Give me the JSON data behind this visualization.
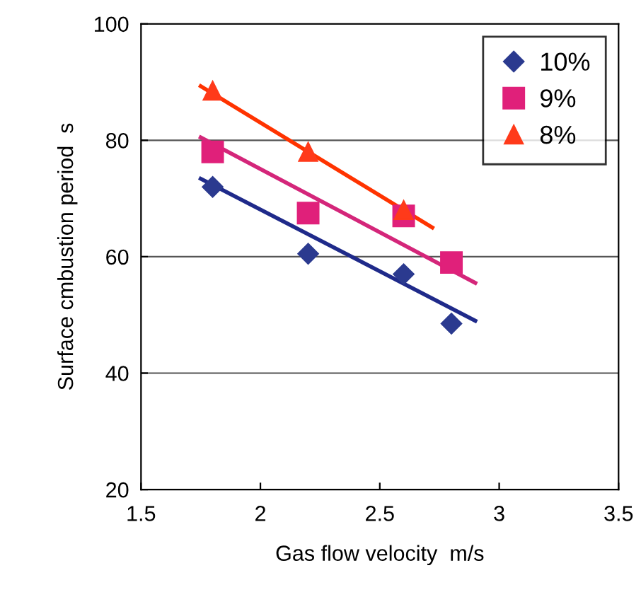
{
  "chart_data": {
    "type": "scatter",
    "xlabel": "Gas flow velocity  m/s",
    "ylabel": "Surface cmbustion period  s",
    "x": [
      1.8,
      2.2,
      2.6,
      2.8
    ],
    "series": [
      {
        "name": "10%",
        "color": "#2b3a8f",
        "marker": "diamond",
        "values": [
          72,
          60.5,
          57,
          48.5
        ]
      },
      {
        "name": "9%",
        "color": "#e0207a",
        "marker": "square",
        "values": [
          78,
          67.5,
          67,
          59
        ]
      },
      {
        "name": "8%",
        "color": "#ff3a1a",
        "marker": "triangle",
        "x": [
          1.8,
          2.2,
          2.6
        ],
        "values": [
          88.5,
          78,
          68
        ]
      },
      {
        "type": "line",
        "color": "#1f2a8a",
        "x": [
          1.75,
          2.9
        ],
        "values": [
          73.4,
          49
        ]
      },
      {
        "type": "line",
        "color": "#d4267a",
        "x": [
          1.75,
          2.9
        ],
        "values": [
          80.5,
          55.5
        ]
      },
      {
        "type": "line",
        "color": "#ff3300",
        "x": [
          1.75,
          2.72
        ],
        "values": [
          89.3,
          65
        ]
      }
    ],
    "xlim": [
      1.5,
      3.5
    ],
    "xticks": [
      1.5,
      2,
      2.5,
      3,
      3.5
    ],
    "ylim": [
      20,
      100
    ],
    "yticks": [
      20,
      40,
      60,
      80,
      100
    ],
    "grid": "y",
    "legend": "top right"
  }
}
